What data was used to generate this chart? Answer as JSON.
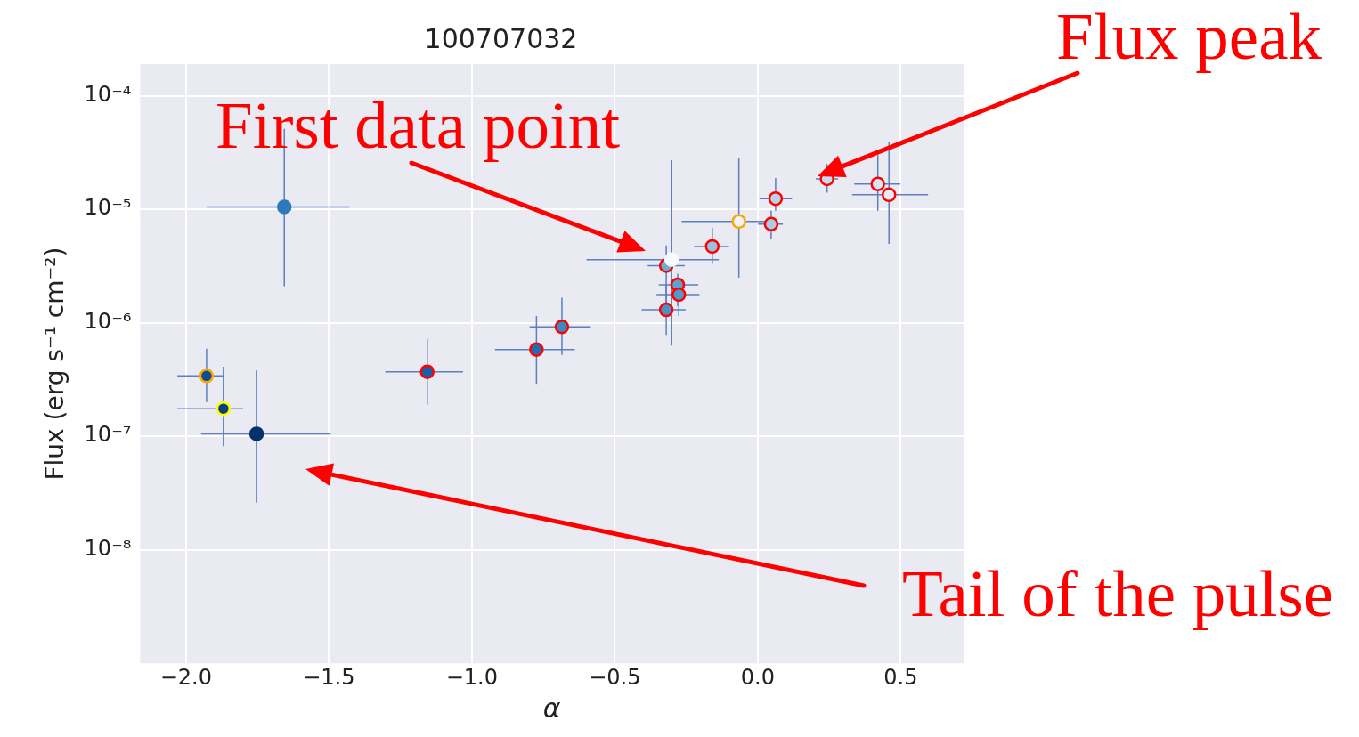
{
  "chart_data": {
    "type": "scatter",
    "title": "100707032",
    "xlabel": "α",
    "ylabel": "Flux (erg s⁻¹ cm⁻²)",
    "xlim": [
      -2.16,
      0.72
    ],
    "xticks": [
      {
        "value": -2,
        "label": "−2.0"
      },
      {
        "value": -1.5,
        "label": "−1.5"
      },
      {
        "value": -1,
        "label": "−1.0"
      },
      {
        "value": -0.5,
        "label": "−0.5"
      },
      {
        "value": 0,
        "label": "0.0"
      },
      {
        "value": 0.5,
        "label": "0.5"
      }
    ],
    "ylim": [
      1e-09,
      0.00019
    ],
    "yticks": [
      {
        "value": 1e-08,
        "label": "10⁻⁸"
      },
      {
        "value": 1e-07,
        "label": "10⁻⁷"
      },
      {
        "value": 1e-06,
        "label": "10⁻⁶"
      },
      {
        "value": 1e-05,
        "label": "10⁻⁵"
      },
      {
        "value": 0.0001,
        "label": "10⁻⁴"
      }
    ],
    "log": "y",
    "grid": true,
    "marker": "circle",
    "series": [
      {
        "x": [
          -1.656,
          -1.753,
          -0.301
        ],
        "values": [
          1.05e-05,
          1.05e-07,
          3.6e-06
        ],
        "colors": [
          "#2b7bba",
          "#08306b",
          "#f7fbff"
        ],
        "xerrors": [
          [
            -1.928,
            -1.428
          ],
          [
            -1.947,
            -1.494
          ],
          [
            -0.599,
            -0.136
          ]
        ],
        "errors": [
          [
            2.1e-06,
            5.1e-05
          ],
          [
            2.6e-08,
            3.8e-07
          ],
          [
            6.3e-07,
            2.7e-05
          ]
        ]
      },
      {
        "color": "#ffa500",
        "x": [
          -1.928,
          -0.066
        ],
        "values": [
          3.4e-07,
          7.8e-06
        ],
        "colors": [
          "#0b4d94",
          "#eef5fc"
        ],
        "xerrors": [
          [
            -2.03,
            -1.866
          ],
          [
            -0.266,
            0.039
          ]
        ],
        "errors": [
          [
            2e-07,
            5.9e-07
          ],
          [
            2.5e-06,
            2.85e-05
          ]
        ]
      },
      {
        "color": "#ffff00",
        "x": [
          -1.869
        ],
        "values": [
          1.75e-07
        ],
        "colors": [
          "#0a3f7f"
        ],
        "xerrors": [
          [
            -2.03,
            -1.8
          ]
        ],
        "errors": [
          [
            8.2e-08,
            4.1e-07
          ]
        ]
      },
      {
        "color": "#ff0000",
        "x": [
          -1.156,
          -0.774,
          -0.685,
          -0.32,
          -0.28,
          -0.276,
          -0.32,
          -0.159,
          0.047,
          0.0625,
          0.2425,
          0.42,
          0.459
        ],
        "values": [
          3.7e-07,
          5.8e-07,
          9.2e-07,
          3.18e-06,
          2.16e-06,
          1.77e-06,
          1.3e-06,
          4.7e-06,
          7.4e-06,
          1.24e-05,
          1.85e-05,
          1.67e-05,
          1.34e-05
        ],
        "colors": [
          "#1561a9",
          "#1f6eb3",
          "#3a8ac2",
          "#6aaed6",
          "#5ba3d0",
          "#4f9bcb",
          "#4a91c6",
          "#94c4df",
          "#a6cee4",
          "#b7d4ea",
          "#c6dbef",
          "#d6e6f4",
          "#e3eef9"
        ],
        "xerrors": [
          [
            -1.303,
            -1.031
          ],
          [
            -0.919,
            -0.64
          ],
          [
            -0.798,
            -0.584
          ],
          [
            -0.385,
            -0.255
          ],
          [
            -0.346,
            -0.208
          ],
          [
            -0.354,
            -0.204
          ],
          [
            -0.406,
            -0.252
          ],
          [
            -0.223,
            -0.1
          ],
          [
            0.001,
            0.088
          ],
          [
            0.006,
            0.12
          ],
          [
            0.203,
            0.281
          ],
          [
            0.338,
            0.499
          ],
          [
            0.33,
            0.596
          ]
        ],
        "errors": [
          [
            1.9e-07,
            7.2e-07
          ],
          [
            2.9e-07,
            1.15e-06
          ],
          [
            5.2e-07,
            1.66e-06
          ],
          [
            1.5e-06,
            4.8e-06
          ],
          [
            1.4e-06,
            2.7e-06
          ],
          [
            1.15e-06,
            2.1e-06
          ],
          [
            7.8e-07,
            2.2e-06
          ],
          [
            3.3e-06,
            6.9e-06
          ],
          [
            5.5e-06,
            9.7e-06
          ],
          [
            9.7e-06,
            1.88e-05
          ],
          [
            1.4e-05,
            2.5e-05
          ],
          [
            9.7e-06,
            3e-05
          ],
          [
            4.95e-06,
            3.9e-05
          ]
        ]
      }
    ],
    "annotations": [
      "First data point",
      "Flux peak",
      "Tail of the pulse"
    ]
  }
}
